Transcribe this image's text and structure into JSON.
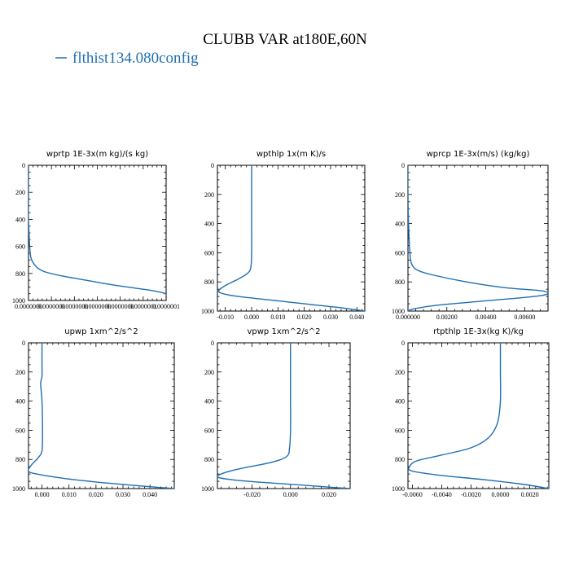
{
  "figure": {
    "title": "CLUBB VAR at180E,60N",
    "legend": {
      "label": "flthist134.080config",
      "color": "#1f6fb2"
    }
  },
  "chart_data": [
    {
      "type": "line",
      "title": "wprtp  1E-3x(m kg)/(s kg)",
      "xlim": [
        0.0,
        1.2e-07
      ],
      "ylim": [
        1000,
        0
      ],
      "x_tick_labels": [
        "0.0000000",
        "0.0000000",
        "0.0000000",
        "0.0000000",
        "0.0000000",
        "0.0000001",
        "0.0000001"
      ],
      "x_tick_values": [
        0.0,
        2e-08,
        4e-08,
        6e-08,
        8e-08,
        1e-07,
        1.2e-07
      ],
      "y_tick_labels": [
        "0",
        "200",
        "400",
        "600",
        "800",
        "1000"
      ],
      "y_tick_values": [
        0,
        200,
        400,
        600,
        800,
        1000
      ],
      "series": [
        {
          "x": [
            0.0,
            0.0,
            0.0,
            0.0,
            0.0,
            5e-10,
            1e-09,
            2e-09,
            4e-09,
            8e-09,
            1.5e-08,
            3e-08,
            5e-08,
            7e-08,
            9e-08,
            1.1e-07,
            1.2e-07,
            1.2e-07
          ],
          "y": [
            0,
            100,
            200,
            300,
            400,
            500,
            600,
            680,
            720,
            760,
            790,
            820,
            850,
            880,
            905,
            930,
            950,
            960
          ]
        }
      ]
    },
    {
      "type": "line",
      "title": "wpthlp  1x(m K)/s",
      "xlim": [
        -0.013,
        0.043
      ],
      "ylim": [
        1000,
        0
      ],
      "x_tick_labels": [
        "-0.010",
        "0.000",
        "0.010",
        "0.020",
        "0.030",
        "0.040"
      ],
      "x_tick_values": [
        -0.01,
        0.0,
        0.01,
        0.02,
        0.03,
        0.04
      ],
      "y_tick_labels": [
        "0",
        "200",
        "400",
        "600",
        "800",
        "1000"
      ],
      "y_tick_values": [
        0,
        200,
        400,
        600,
        800,
        1000
      ],
      "series": [
        {
          "x": [
            0.0,
            0.0,
            0.0,
            0.0,
            -0.0003,
            -0.0015,
            -0.005,
            -0.0095,
            -0.0125,
            -0.011,
            -0.005,
            0.005,
            0.015,
            0.025,
            0.033,
            0.039,
            0.043
          ],
          "y": [
            0,
            200,
            400,
            600,
            700,
            740,
            780,
            820,
            860,
            880,
            900,
            920,
            940,
            960,
            975,
            990,
            1000
          ]
        }
      ]
    },
    {
      "type": "line",
      "title": "wprcp  1E-3x(m/s) (kg/kg)",
      "xlim": [
        0.0,
        0.0072
      ],
      "ylim": [
        1000,
        0
      ],
      "x_tick_labels": [
        "0.000000",
        "0.00200",
        "0.00400",
        "0.00600"
      ],
      "x_tick_values": [
        0.0,
        0.002,
        0.004,
        0.006
      ],
      "y_tick_labels": [
        "0",
        "200",
        "400",
        "600",
        "800",
        "1000"
      ],
      "y_tick_values": [
        0,
        200,
        400,
        600,
        800,
        1000
      ],
      "series": [
        {
          "x": [
            0.0,
            0.0,
            3e-05,
            0.0001,
            0.0002,
            0.0005,
            0.0012,
            0.003,
            0.005,
            0.0068,
            0.0072,
            0.0065,
            0.004,
            0.0015,
            0.0003,
            0.0
          ],
          "y": [
            0,
            200,
            400,
            600,
            680,
            720,
            750,
            800,
            840,
            860,
            880,
            900,
            930,
            960,
            985,
            1000
          ]
        }
      ]
    },
    {
      "type": "line",
      "title": "upwp   1xm^2/s^2",
      "xlim": [
        -0.005,
        0.049
      ],
      "ylim": [
        1000,
        0
      ],
      "x_tick_labels": [
        "0.000",
        "0.010",
        "0.020",
        "0.030",
        "0.040"
      ],
      "x_tick_values": [
        0.0,
        0.01,
        0.02,
        0.03,
        0.04
      ],
      "y_tick_labels": [
        "0",
        "200",
        "400",
        "600",
        "800",
        "1000"
      ],
      "y_tick_values": [
        0,
        200,
        400,
        600,
        800,
        1000
      ],
      "series": [
        {
          "x": [
            0.0,
            0.0,
            0.0,
            -0.0005,
            0.0,
            0.0002,
            0.0,
            -0.0015,
            -0.004,
            -0.005,
            -0.002,
            0.008,
            0.02,
            0.032,
            0.042,
            0.049
          ],
          "y": [
            0,
            150,
            230,
            280,
            400,
            600,
            740,
            790,
            840,
            880,
            900,
            930,
            955,
            975,
            990,
            1000
          ]
        }
      ]
    },
    {
      "type": "line",
      "title": "vpwp   1xm^2/s^2",
      "xlim": [
        -0.038,
        0.031
      ],
      "ylim": [
        1000,
        0
      ],
      "x_tick_labels": [
        "-0.020",
        "0.000",
        "0.020"
      ],
      "x_tick_values": [
        -0.02,
        0.0,
        0.02
      ],
      "y_tick_labels": [
        "0",
        "200",
        "400",
        "600",
        "800",
        "1000"
      ],
      "y_tick_values": [
        0,
        200,
        400,
        600,
        800,
        1000
      ],
      "series": [
        {
          "x": [
            0.0,
            0.0,
            0.0,
            0.0,
            -0.0005,
            -0.002,
            -0.01,
            -0.025,
            -0.034,
            -0.038,
            -0.03,
            -0.012,
            0.005,
            0.02,
            0.031
          ],
          "y": [
            0,
            200,
            400,
            600,
            720,
            780,
            820,
            860,
            890,
            920,
            940,
            960,
            975,
            990,
            1000
          ]
        }
      ]
    },
    {
      "type": "line",
      "title": "rtpthlp   1E-3x(kg K)/kg",
      "xlim": [
        -0.0063,
        0.0033
      ],
      "ylim": [
        1000,
        0
      ],
      "x_tick_labels": [
        "-0.0060",
        "-0.0040",
        "-0.0020",
        "0.0000",
        "0.0020"
      ],
      "x_tick_values": [
        -0.006,
        -0.004,
        -0.002,
        0.0,
        0.002
      ],
      "y_tick_labels": [
        "0",
        "200",
        "400",
        "600",
        "800",
        "1000"
      ],
      "y_tick_values": [
        0,
        200,
        400,
        600,
        800,
        1000
      ],
      "series": [
        {
          "x": [
            0.0,
            0.0,
            0.0,
            -0.0002,
            -0.0008,
            -0.002,
            -0.004,
            -0.0057,
            -0.0062,
            -0.006,
            -0.004,
            -0.001,
            0.0015,
            0.0033
          ],
          "y": [
            0,
            200,
            400,
            550,
            650,
            720,
            770,
            810,
            850,
            880,
            910,
            940,
            970,
            1000
          ]
        }
      ]
    }
  ]
}
